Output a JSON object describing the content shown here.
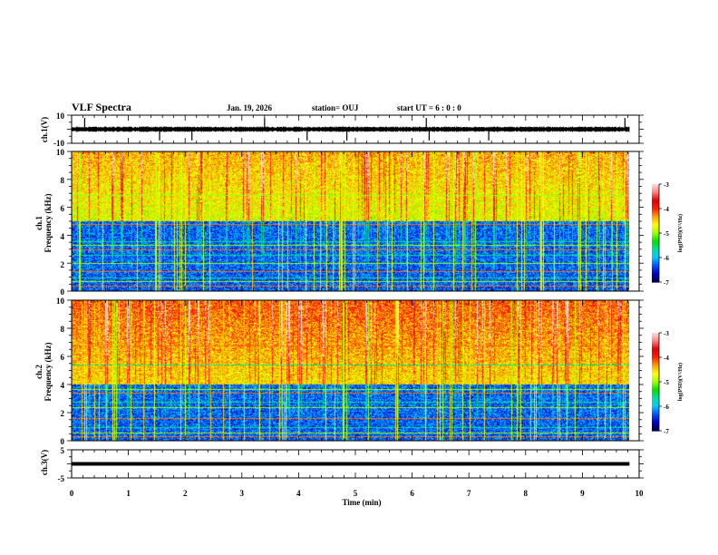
{
  "header": {
    "title": "VLF Spectra",
    "date": "Jan. 19, 2026",
    "station": "station= OUJ",
    "start": "start UT =  6 : 0 : 0"
  },
  "colorbar": {
    "label": "log(PSD)(V²/Hz)",
    "ticks": [
      "-3",
      "-4",
      "-5",
      "-6",
      "-7"
    ],
    "range": [
      -7,
      -3
    ],
    "colors": [
      "#000040",
      "#0000c0",
      "#0050ff",
      "#00c8ff",
      "#00e0a0",
      "#00e000",
      "#a0ff00",
      "#ffff00",
      "#ffa000",
      "#ff2000",
      "#e00000",
      "#ff8080",
      "#ffe0e0"
    ]
  },
  "chart_data": [
    {
      "type": "line",
      "name": "ch1-waveform",
      "ylabel": "ch.1(V)",
      "ylim": [
        -10,
        10
      ],
      "yticks": [
        "10",
        "-10"
      ],
      "xlim": [
        0,
        10
      ],
      "baseline_value": 0,
      "spike_times_min": [
        0.23,
        1.55,
        2.12,
        3.4,
        4.15,
        4.85,
        6.25,
        6.3,
        7.35,
        9.75
      ]
    },
    {
      "type": "heatmap",
      "name": "ch1-spectrogram",
      "ylabel_channel": "ch.1",
      "ylabel": "Frequency (kHz)",
      "ylim": [
        0,
        10
      ],
      "yticks": [
        "0",
        "2",
        "4",
        "6",
        "8",
        "10"
      ],
      "xlim": [
        0,
        9.83
      ],
      "background_above_kHz": 5,
      "background_level_high": -4.8,
      "background_level_low": -6.3,
      "line_freqs_kHz": [
        0.4,
        0.7,
        1.0,
        1.4,
        2.0,
        2.6,
        3.0,
        3.3,
        3.6,
        4.8,
        6.9
      ]
    },
    {
      "type": "heatmap",
      "name": "ch2-spectrogram",
      "ylabel_channel": "ch.2",
      "ylabel": "Frequency (kHz)",
      "ylim": [
        0,
        10
      ],
      "yticks": [
        "0",
        "2",
        "4",
        "6",
        "8",
        "10"
      ],
      "xlim": [
        0,
        9.83
      ],
      "background_above_kHz": 4,
      "background_level_high": -4.6,
      "background_level_low": -6.3,
      "line_freqs_kHz": [
        0.3,
        0.6,
        1.0,
        1.6,
        2.4,
        2.8,
        3.4,
        3.7,
        5.4,
        6.8
      ]
    },
    {
      "type": "line",
      "name": "ch3-waveform",
      "ylabel": "ch.3(V)",
      "ylim": [
        -5,
        5
      ],
      "yticks": [
        "5",
        "-5"
      ],
      "xlim": [
        0,
        10
      ],
      "constant_value": 0
    }
  ],
  "xaxis": {
    "label": "Time (min)",
    "range": [
      0,
      10
    ],
    "ticks": [
      "0",
      "1",
      "2",
      "3",
      "4",
      "5",
      "6",
      "7",
      "8",
      "9",
      "10"
    ]
  }
}
